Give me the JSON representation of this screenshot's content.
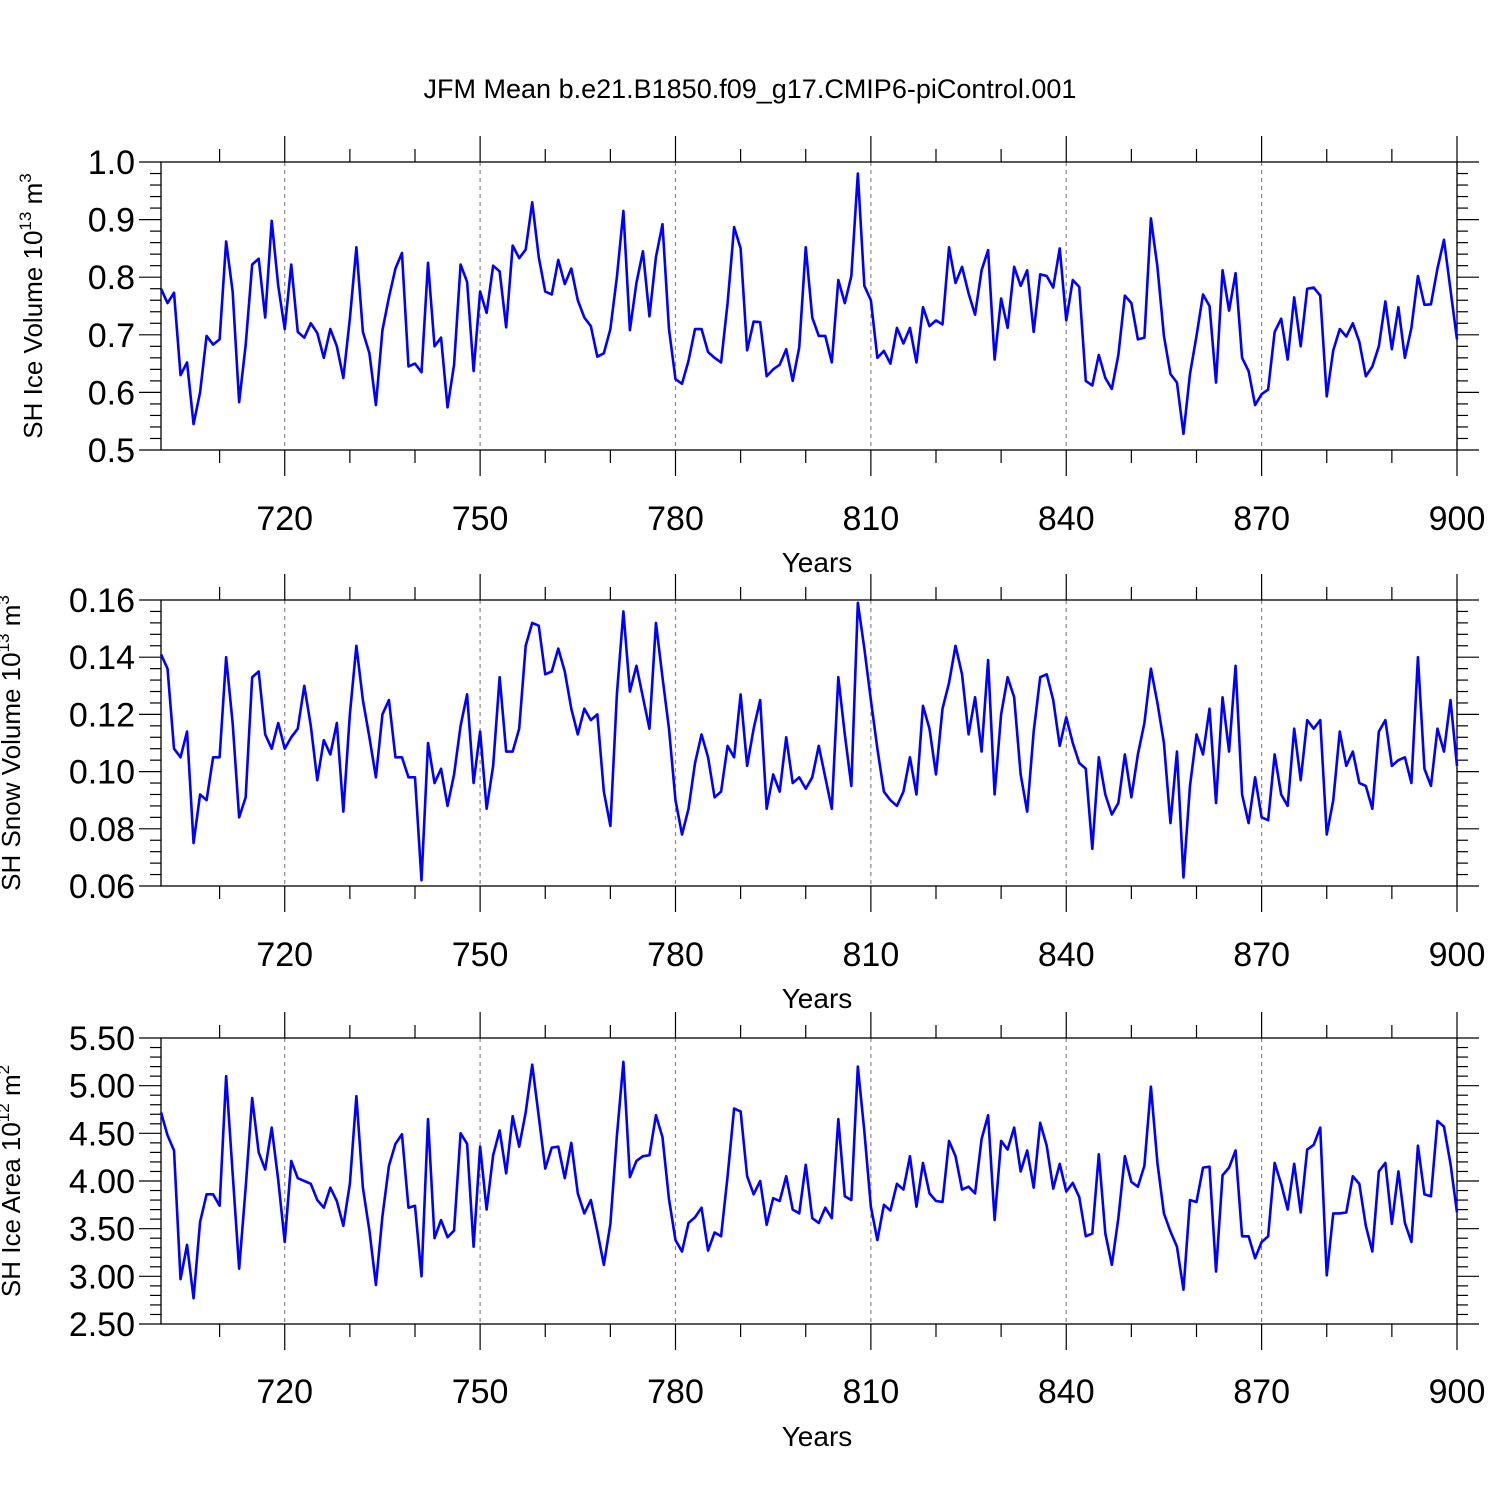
{
  "title": "JFM Mean b.e21.B1850.f09_g17.CMIP6-piControl.001",
  "line_color": "#0000ff",
  "chart_data": [
    {
      "type": "line",
      "title": "JFM Mean b.e21.B1850.f09_g17.CMIP6-piControl.001",
      "xlabel": "Years",
      "ylabel": {
        "base": "SH Ice Volume 10",
        "exp": "13",
        "unit": " m",
        "unit_exp": "3"
      },
      "xlim": [
        701,
        900
      ],
      "ylim": [
        0.5,
        1.0
      ],
      "x_ticks": [
        "720",
        "750",
        "780",
        "810",
        "840",
        "870",
        "900"
      ],
      "x_tick_values": [
        720,
        750,
        780,
        810,
        840,
        870,
        900
      ],
      "y_ticks": [
        "0.5",
        "0.6",
        "0.7",
        "0.8",
        "0.9",
        "1.0"
      ],
      "y_tick_values": [
        0.5,
        0.6,
        0.7,
        0.8,
        0.9,
        1.0
      ],
      "grid": "dashed vertical at major x ticks",
      "x_start": 701,
      "values": [
        0.78,
        0.755,
        0.773,
        0.63,
        0.652,
        0.545,
        0.6,
        0.698,
        0.683,
        0.692,
        0.862,
        0.775,
        0.583,
        0.682,
        0.822,
        0.832,
        0.73,
        0.898,
        0.785,
        0.71,
        0.822,
        0.705,
        0.695,
        0.72,
        0.703,
        0.66,
        0.71,
        0.68,
        0.625,
        0.728,
        0.852,
        0.705,
        0.668,
        0.578,
        0.708,
        0.765,
        0.815,
        0.842,
        0.645,
        0.65,
        0.635,
        0.825,
        0.68,
        0.695,
        0.574,
        0.648,
        0.822,
        0.792,
        0.637,
        0.775,
        0.738,
        0.82,
        0.81,
        0.713,
        0.855,
        0.833,
        0.848,
        0.93,
        0.835,
        0.775,
        0.77,
        0.83,
        0.788,
        0.815,
        0.76,
        0.73,
        0.715,
        0.662,
        0.668,
        0.71,
        0.8,
        0.915,
        0.708,
        0.79,
        0.845,
        0.732,
        0.835,
        0.892,
        0.71,
        0.623,
        0.615,
        0.655,
        0.71,
        0.71,
        0.67,
        0.66,
        0.652,
        0.755,
        0.887,
        0.85,
        0.673,
        0.723,
        0.722,
        0.628,
        0.64,
        0.648,
        0.675,
        0.62,
        0.678,
        0.852,
        0.73,
        0.698,
        0.698,
        0.652,
        0.795,
        0.755,
        0.802,
        0.98,
        0.785,
        0.76,
        0.66,
        0.672,
        0.65,
        0.712,
        0.685,
        0.712,
        0.652,
        0.748,
        0.715,
        0.725,
        0.718,
        0.852,
        0.79,
        0.818,
        0.772,
        0.735,
        0.812,
        0.847,
        0.657,
        0.763,
        0.712,
        0.818,
        0.785,
        0.812,
        0.705,
        0.805,
        0.802,
        0.782,
        0.85,
        0.725,
        0.795,
        0.783,
        0.62,
        0.612,
        0.665,
        0.625,
        0.606,
        0.665,
        0.768,
        0.755,
        0.692,
        0.695,
        0.902,
        0.818,
        0.698,
        0.632,
        0.617,
        0.528,
        0.632,
        0.698,
        0.77,
        0.75,
        0.617,
        0.812,
        0.742,
        0.807,
        0.66,
        0.637,
        0.578,
        0.597,
        0.605,
        0.705,
        0.728,
        0.657,
        0.765,
        0.68,
        0.78,
        0.782,
        0.768,
        0.593,
        0.673,
        0.71,
        0.697,
        0.72,
        0.688,
        0.628,
        0.645,
        0.68,
        0.758,
        0.675,
        0.748,
        0.66,
        0.712,
        0.802,
        0.752,
        0.753,
        0.815,
        0.865,
        0.778,
        0.692
      ]
    },
    {
      "type": "line",
      "xlabel": "Years",
      "ylabel": {
        "base": "SH Snow Volume 10",
        "exp": "13",
        "unit": " m",
        "unit_exp": "3"
      },
      "xlim": [
        701,
        900
      ],
      "ylim": [
        0.06,
        0.16
      ],
      "x_ticks": [
        "720",
        "750",
        "780",
        "810",
        "840",
        "870",
        "900"
      ],
      "x_tick_values": [
        720,
        750,
        780,
        810,
        840,
        870,
        900
      ],
      "y_ticks": [
        "0.06",
        "0.08",
        "0.10",
        "0.12",
        "0.14",
        "0.16"
      ],
      "y_tick_values": [
        0.06,
        0.08,
        0.1,
        0.12,
        0.14,
        0.16
      ],
      "grid": "dashed vertical at major x ticks",
      "x_start": 701,
      "values": [
        0.141,
        0.136,
        0.108,
        0.105,
        0.114,
        0.075,
        0.092,
        0.09,
        0.105,
        0.105,
        0.14,
        0.117,
        0.084,
        0.091,
        0.133,
        0.135,
        0.113,
        0.108,
        0.117,
        0.108,
        0.112,
        0.115,
        0.13,
        0.116,
        0.097,
        0.111,
        0.106,
        0.117,
        0.086,
        0.12,
        0.144,
        0.125,
        0.112,
        0.098,
        0.12,
        0.125,
        0.105,
        0.105,
        0.098,
        0.098,
        0.062,
        0.11,
        0.096,
        0.101,
        0.088,
        0.099,
        0.116,
        0.127,
        0.096,
        0.114,
        0.087,
        0.102,
        0.133,
        0.107,
        0.107,
        0.115,
        0.144,
        0.152,
        0.151,
        0.134,
        0.135,
        0.143,
        0.135,
        0.122,
        0.113,
        0.122,
        0.118,
        0.12,
        0.093,
        0.081,
        0.127,
        0.156,
        0.128,
        0.137,
        0.126,
        0.115,
        0.152,
        0.133,
        0.115,
        0.09,
        0.078,
        0.087,
        0.103,
        0.113,
        0.105,
        0.091,
        0.093,
        0.109,
        0.105,
        0.127,
        0.102,
        0.115,
        0.125,
        0.087,
        0.099,
        0.093,
        0.112,
        0.096,
        0.098,
        0.094,
        0.098,
        0.109,
        0.098,
        0.087,
        0.133,
        0.113,
        0.095,
        0.159,
        0.143,
        0.125,
        0.108,
        0.093,
        0.09,
        0.088,
        0.093,
        0.105,
        0.092,
        0.123,
        0.115,
        0.099,
        0.122,
        0.131,
        0.144,
        0.134,
        0.113,
        0.126,
        0.107,
        0.139,
        0.092,
        0.12,
        0.133,
        0.126,
        0.099,
        0.086,
        0.114,
        0.133,
        0.134,
        0.125,
        0.109,
        0.119,
        0.11,
        0.103,
        0.101,
        0.073,
        0.105,
        0.092,
        0.085,
        0.089,
        0.106,
        0.091,
        0.106,
        0.117,
        0.136,
        0.124,
        0.11,
        0.082,
        0.107,
        0.063,
        0.095,
        0.113,
        0.106,
        0.122,
        0.089,
        0.126,
        0.107,
        0.137,
        0.092,
        0.082,
        0.098,
        0.084,
        0.083,
        0.106,
        0.092,
        0.088,
        0.115,
        0.097,
        0.118,
        0.115,
        0.118,
        0.078,
        0.09,
        0.114,
        0.102,
        0.107,
        0.096,
        0.095,
        0.087,
        0.114,
        0.118,
        0.102,
        0.104,
        0.105,
        0.096,
        0.14,
        0.101,
        0.095,
        0.115,
        0.107,
        0.125,
        0.102
      ]
    },
    {
      "type": "line",
      "xlabel": "Years",
      "ylabel": {
        "base": "SH Ice Area 10",
        "exp": "12",
        "unit": " m",
        "unit_exp": "2"
      },
      "xlim": [
        701,
        900
      ],
      "ylim": [
        2.5,
        5.5
      ],
      "x_ticks": [
        "720",
        "750",
        "780",
        "810",
        "840",
        "870",
        "900"
      ],
      "x_tick_values": [
        720,
        750,
        780,
        810,
        840,
        870,
        900
      ],
      "y_ticks": [
        "2.50",
        "3.00",
        "3.50",
        "4.00",
        "4.50",
        "5.00",
        "5.50"
      ],
      "y_tick_values": [
        2.5,
        3.0,
        3.5,
        4.0,
        4.5,
        5.0,
        5.5
      ],
      "grid": "dashed vertical at major x ticks",
      "x_start": 701,
      "values": [
        4.72,
        4.48,
        4.32,
        2.97,
        3.33,
        2.77,
        3.57,
        3.86,
        3.86,
        3.74,
        5.1,
        4.08,
        3.08,
        3.93,
        4.87,
        4.3,
        4.12,
        4.56,
        4.01,
        3.36,
        4.21,
        4.03,
        4.0,
        3.97,
        3.8,
        3.72,
        3.93,
        3.79,
        3.53,
        3.97,
        4.89,
        3.93,
        3.48,
        2.91,
        3.63,
        4.16,
        4.39,
        4.49,
        3.72,
        3.74,
        3.0,
        4.65,
        3.4,
        3.59,
        3.41,
        3.48,
        4.5,
        4.39,
        3.31,
        4.36,
        3.7,
        4.27,
        4.53,
        4.08,
        4.68,
        4.36,
        4.72,
        5.22,
        4.68,
        4.13,
        4.35,
        4.36,
        4.03,
        4.4,
        3.87,
        3.66,
        3.8,
        3.47,
        3.12,
        3.55,
        4.47,
        5.25,
        4.04,
        4.21,
        4.26,
        4.27,
        4.69,
        4.46,
        3.81,
        3.38,
        3.26,
        3.56,
        3.62,
        3.72,
        3.27,
        3.46,
        3.42,
        4.05,
        4.76,
        4.73,
        4.05,
        3.86,
        4.0,
        3.54,
        3.82,
        3.79,
        4.05,
        3.7,
        3.66,
        4.17,
        3.61,
        3.56,
        3.72,
        3.61,
        4.65,
        3.84,
        3.8,
        5.2,
        4.52,
        3.73,
        3.38,
        3.75,
        3.69,
        3.97,
        3.91,
        4.26,
        3.73,
        4.19,
        3.87,
        3.79,
        3.78,
        4.42,
        4.26,
        3.91,
        3.94,
        3.87,
        4.44,
        4.69,
        3.59,
        4.42,
        4.33,
        4.56,
        4.1,
        4.32,
        3.93,
        4.61,
        4.37,
        3.92,
        4.18,
        3.89,
        3.98,
        3.83,
        3.42,
        3.45,
        4.28,
        3.45,
        3.12,
        3.61,
        4.26,
        3.99,
        3.94,
        4.16,
        4.99,
        4.19,
        3.66,
        3.47,
        3.31,
        2.86,
        3.8,
        3.78,
        4.14,
        4.15,
        3.05,
        4.06,
        4.14,
        4.32,
        3.42,
        3.42,
        3.19,
        3.36,
        3.42,
        4.19,
        3.97,
        3.7,
        4.18,
        3.67,
        4.33,
        4.38,
        4.56,
        3.01,
        3.66,
        3.66,
        3.67,
        4.05,
        3.97,
        3.53,
        3.26,
        4.1,
        4.19,
        3.55,
        4.1,
        3.56,
        3.36,
        4.37,
        3.86,
        3.84,
        4.63,
        4.57,
        4.18,
        3.67
      ]
    }
  ]
}
